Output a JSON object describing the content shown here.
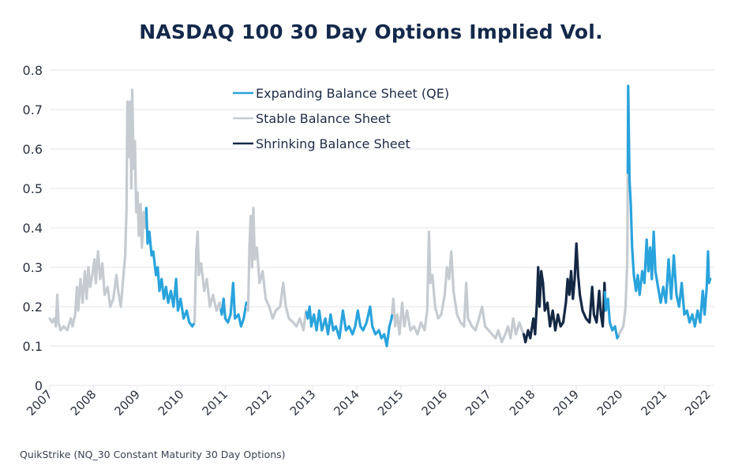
{
  "title": "NASDAQ 100 30 Day Options Implied Vol.",
  "source": "QuikStrike (NQ_30 Constant Maturity 30 Day Options)",
  "colors": {
    "expanding": "#29a3dc",
    "stable": "#c5cbd0",
    "shrinking": "#142844",
    "grid": "#e4e6e9",
    "text": "#1d2b45"
  },
  "chart_data": {
    "type": "line",
    "title": "NASDAQ 100 30 Day Options Implied Vol.",
    "xlabel": "",
    "ylabel": "",
    "xlim": [
      2007,
      2022
    ],
    "ylim": [
      0,
      0.8
    ],
    "grid": true,
    "legend_position": "top-center",
    "x_ticks": [
      "2007",
      "2008",
      "2009",
      "2010",
      "2011",
      "2012",
      "2013",
      "2014",
      "2015",
      "2016",
      "2017",
      "2018",
      "2019",
      "2020",
      "2021",
      "2022"
    ],
    "y_ticks": [
      "0",
      "0.1",
      "0.2",
      "0.3",
      "0.4",
      "0.5",
      "0.6",
      "0.7",
      "0.8"
    ],
    "legend": [
      {
        "key": "expanding",
        "label": "Expanding Balance Sheet (QE)"
      },
      {
        "key": "stable",
        "label": "Stable Balance Sheet"
      },
      {
        "key": "shrinking",
        "label": "Shrinking Balance Sheet"
      }
    ],
    "regimes": [
      {
        "key": "stable",
        "from": 2007.0,
        "to": 2009.2
      },
      {
        "key": "expanding",
        "from": 2009.2,
        "to": 2010.3
      },
      {
        "key": "stable",
        "from": 2010.3,
        "to": 2010.9
      },
      {
        "key": "expanding",
        "from": 2010.9,
        "to": 2011.5
      },
      {
        "key": "stable",
        "from": 2011.5,
        "to": 2012.85
      },
      {
        "key": "expanding",
        "from": 2012.85,
        "to": 2014.8
      },
      {
        "key": "stable",
        "from": 2014.8,
        "to": 2017.8
      },
      {
        "key": "shrinking",
        "from": 2017.8,
        "to": 2019.65
      },
      {
        "key": "expanding",
        "from": 2019.65,
        "to": 2019.97
      },
      {
        "key": "stable",
        "from": 2019.97,
        "to": 2020.17
      },
      {
        "key": "expanding",
        "from": 2020.17,
        "to": 2022.05
      }
    ],
    "series": [
      {
        "name": "NQ 30 Day Implied Vol",
        "points": [
          [
            2007.0,
            0.17
          ],
          [
            2007.05,
            0.16
          ],
          [
            2007.1,
            0.17
          ],
          [
            2007.14,
            0.15
          ],
          [
            2007.17,
            0.23
          ],
          [
            2007.2,
            0.16
          ],
          [
            2007.25,
            0.14
          ],
          [
            2007.32,
            0.15
          ],
          [
            2007.4,
            0.14
          ],
          [
            2007.48,
            0.17
          ],
          [
            2007.52,
            0.15
          ],
          [
            2007.58,
            0.18
          ],
          [
            2007.62,
            0.25
          ],
          [
            2007.65,
            0.19
          ],
          [
            2007.7,
            0.27
          ],
          [
            2007.75,
            0.21
          ],
          [
            2007.8,
            0.29
          ],
          [
            2007.84,
            0.22
          ],
          [
            2007.88,
            0.3
          ],
          [
            2007.92,
            0.25
          ],
          [
            2007.97,
            0.28
          ],
          [
            2008.02,
            0.32
          ],
          [
            2008.05,
            0.26
          ],
          [
            2008.1,
            0.34
          ],
          [
            2008.15,
            0.27
          ],
          [
            2008.2,
            0.31
          ],
          [
            2008.25,
            0.23
          ],
          [
            2008.32,
            0.25
          ],
          [
            2008.38,
            0.2
          ],
          [
            2008.45,
            0.22
          ],
          [
            2008.52,
            0.28
          ],
          [
            2008.56,
            0.24
          ],
          [
            2008.62,
            0.2
          ],
          [
            2008.68,
            0.28
          ],
          [
            2008.72,
            0.33
          ],
          [
            2008.75,
            0.45
          ],
          [
            2008.77,
            0.72
          ],
          [
            2008.8,
            0.58
          ],
          [
            2008.83,
            0.72
          ],
          [
            2008.86,
            0.5
          ],
          [
            2008.88,
            0.75
          ],
          [
            2008.91,
            0.55
          ],
          [
            2008.94,
            0.62
          ],
          [
            2008.97,
            0.44
          ],
          [
            2009.0,
            0.49
          ],
          [
            2009.03,
            0.38
          ],
          [
            2009.07,
            0.46
          ],
          [
            2009.1,
            0.35
          ],
          [
            2009.14,
            0.44
          ],
          [
            2009.18,
            0.4
          ],
          [
            2009.2,
            0.45
          ],
          [
            2009.23,
            0.36
          ],
          [
            2009.27,
            0.39
          ],
          [
            2009.32,
            0.33
          ],
          [
            2009.36,
            0.34
          ],
          [
            2009.42,
            0.28
          ],
          [
            2009.46,
            0.3
          ],
          [
            2009.5,
            0.24
          ],
          [
            2009.55,
            0.27
          ],
          [
            2009.6,
            0.22
          ],
          [
            2009.65,
            0.25
          ],
          [
            2009.7,
            0.21
          ],
          [
            2009.76,
            0.24
          ],
          [
            2009.82,
            0.2
          ],
          [
            2009.88,
            0.27
          ],
          [
            2009.92,
            0.19
          ],
          [
            2009.98,
            0.22
          ],
          [
            2010.05,
            0.17
          ],
          [
            2010.12,
            0.19
          ],
          [
            2010.18,
            0.16
          ],
          [
            2010.25,
            0.15
          ],
          [
            2010.3,
            0.16
          ],
          [
            2010.34,
            0.34
          ],
          [
            2010.37,
            0.39
          ],
          [
            2010.4,
            0.28
          ],
          [
            2010.45,
            0.31
          ],
          [
            2010.52,
            0.24
          ],
          [
            2010.58,
            0.27
          ],
          [
            2010.65,
            0.2
          ],
          [
            2010.72,
            0.23
          ],
          [
            2010.8,
            0.19
          ],
          [
            2010.87,
            0.21
          ],
          [
            2010.92,
            0.18
          ],
          [
            2010.96,
            0.22
          ],
          [
            2011.0,
            0.17
          ],
          [
            2011.06,
            0.16
          ],
          [
            2011.12,
            0.18
          ],
          [
            2011.18,
            0.26
          ],
          [
            2011.22,
            0.17
          ],
          [
            2011.3,
            0.18
          ],
          [
            2011.36,
            0.15
          ],
          [
            2011.42,
            0.17
          ],
          [
            2011.48,
            0.21
          ],
          [
            2011.52,
            0.19
          ],
          [
            2011.55,
            0.35
          ],
          [
            2011.58,
            0.43
          ],
          [
            2011.61,
            0.3
          ],
          [
            2011.64,
            0.45
          ],
          [
            2011.67,
            0.32
          ],
          [
            2011.72,
            0.35
          ],
          [
            2011.78,
            0.26
          ],
          [
            2011.85,
            0.29
          ],
          [
            2011.92,
            0.22
          ],
          [
            2012.0,
            0.2
          ],
          [
            2012.08,
            0.17
          ],
          [
            2012.15,
            0.19
          ],
          [
            2012.25,
            0.2
          ],
          [
            2012.32,
            0.26
          ],
          [
            2012.38,
            0.2
          ],
          [
            2012.45,
            0.17
          ],
          [
            2012.55,
            0.16
          ],
          [
            2012.62,
            0.15
          ],
          [
            2012.7,
            0.17
          ],
          [
            2012.78,
            0.14
          ],
          [
            2012.84,
            0.19
          ],
          [
            2012.88,
            0.17
          ],
          [
            2012.92,
            0.2
          ],
          [
            2012.96,
            0.15
          ],
          [
            2013.02,
            0.18
          ],
          [
            2013.08,
            0.14
          ],
          [
            2013.14,
            0.19
          ],
          [
            2013.2,
            0.14
          ],
          [
            2013.28,
            0.17
          ],
          [
            2013.34,
            0.13
          ],
          [
            2013.4,
            0.18
          ],
          [
            2013.46,
            0.14
          ],
          [
            2013.52,
            0.15
          ],
          [
            2013.6,
            0.12
          ],
          [
            2013.68,
            0.19
          ],
          [
            2013.75,
            0.14
          ],
          [
            2013.82,
            0.15
          ],
          [
            2013.9,
            0.13
          ],
          [
            2013.96,
            0.15
          ],
          [
            2014.02,
            0.19
          ],
          [
            2014.08,
            0.15
          ],
          [
            2014.14,
            0.14
          ],
          [
            2014.22,
            0.16
          ],
          [
            2014.3,
            0.2
          ],
          [
            2014.35,
            0.15
          ],
          [
            2014.42,
            0.13
          ],
          [
            2014.5,
            0.14
          ],
          [
            2014.56,
            0.12
          ],
          [
            2014.62,
            0.13
          ],
          [
            2014.68,
            0.1
          ],
          [
            2014.74,
            0.15
          ],
          [
            2014.79,
            0.17
          ],
          [
            2014.83,
            0.22
          ],
          [
            2014.87,
            0.15
          ],
          [
            2014.92,
            0.18
          ],
          [
            2014.97,
            0.13
          ],
          [
            2015.03,
            0.21
          ],
          [
            2015.08,
            0.15
          ],
          [
            2015.14,
            0.19
          ],
          [
            2015.22,
            0.14
          ],
          [
            2015.3,
            0.15
          ],
          [
            2015.38,
            0.13
          ],
          [
            2015.46,
            0.16
          ],
          [
            2015.54,
            0.14
          ],
          [
            2015.6,
            0.19
          ],
          [
            2015.64,
            0.39
          ],
          [
            2015.67,
            0.26
          ],
          [
            2015.72,
            0.28
          ],
          [
            2015.78,
            0.2
          ],
          [
            2015.85,
            0.17
          ],
          [
            2015.92,
            0.18
          ],
          [
            2016.0,
            0.23
          ],
          [
            2016.05,
            0.3
          ],
          [
            2016.1,
            0.27
          ],
          [
            2016.15,
            0.34
          ],
          [
            2016.2,
            0.24
          ],
          [
            2016.28,
            0.18
          ],
          [
            2016.36,
            0.16
          ],
          [
            2016.44,
            0.15
          ],
          [
            2016.49,
            0.26
          ],
          [
            2016.53,
            0.17
          ],
          [
            2016.62,
            0.15
          ],
          [
            2016.7,
            0.14
          ],
          [
            2016.78,
            0.17
          ],
          [
            2016.85,
            0.2
          ],
          [
            2016.92,
            0.15
          ],
          [
            2017.0,
            0.14
          ],
          [
            2017.08,
            0.13
          ],
          [
            2017.16,
            0.12
          ],
          [
            2017.22,
            0.14
          ],
          [
            2017.3,
            0.11
          ],
          [
            2017.38,
            0.13
          ],
          [
            2017.44,
            0.15
          ],
          [
            2017.5,
            0.12
          ],
          [
            2017.56,
            0.17
          ],
          [
            2017.62,
            0.13
          ],
          [
            2017.7,
            0.16
          ],
          [
            2017.76,
            0.14
          ],
          [
            2017.8,
            0.13
          ],
          [
            2017.84,
            0.11
          ],
          [
            2017.9,
            0.14
          ],
          [
            2017.95,
            0.12
          ],
          [
            2018.02,
            0.17
          ],
          [
            2018.06,
            0.13
          ],
          [
            2018.1,
            0.21
          ],
          [
            2018.13,
            0.3
          ],
          [
            2018.16,
            0.2
          ],
          [
            2018.2,
            0.29
          ],
          [
            2018.24,
            0.26
          ],
          [
            2018.28,
            0.19
          ],
          [
            2018.34,
            0.21
          ],
          [
            2018.4,
            0.15
          ],
          [
            2018.46,
            0.19
          ],
          [
            2018.52,
            0.14
          ],
          [
            2018.58,
            0.18
          ],
          [
            2018.64,
            0.15
          ],
          [
            2018.7,
            0.16
          ],
          [
            2018.76,
            0.21
          ],
          [
            2018.8,
            0.27
          ],
          [
            2018.84,
            0.23
          ],
          [
            2018.88,
            0.29
          ],
          [
            2018.92,
            0.22
          ],
          [
            2018.96,
            0.27
          ],
          [
            2019.0,
            0.36
          ],
          [
            2019.04,
            0.28
          ],
          [
            2019.08,
            0.23
          ],
          [
            2019.14,
            0.19
          ],
          [
            2019.22,
            0.17
          ],
          [
            2019.3,
            0.16
          ],
          [
            2019.36,
            0.25
          ],
          [
            2019.4,
            0.18
          ],
          [
            2019.46,
            0.16
          ],
          [
            2019.52,
            0.24
          ],
          [
            2019.56,
            0.18
          ],
          [
            2019.6,
            0.15
          ],
          [
            2019.64,
            0.26
          ],
          [
            2019.67,
            0.19
          ],
          [
            2019.72,
            0.22
          ],
          [
            2019.76,
            0.16
          ],
          [
            2019.82,
            0.14
          ],
          [
            2019.88,
            0.15
          ],
          [
            2019.93,
            0.12
          ],
          [
            2019.97,
            0.13
          ],
          [
            2020.02,
            0.14
          ],
          [
            2020.07,
            0.15
          ],
          [
            2020.12,
            0.2
          ],
          [
            2020.16,
            0.32
          ],
          [
            2020.18,
            0.76
          ],
          [
            2020.21,
            0.52
          ],
          [
            2020.24,
            0.46
          ],
          [
            2020.27,
            0.35
          ],
          [
            2020.31,
            0.28
          ],
          [
            2020.36,
            0.24
          ],
          [
            2020.4,
            0.28
          ],
          [
            2020.44,
            0.23
          ],
          [
            2020.5,
            0.29
          ],
          [
            2020.55,
            0.26
          ],
          [
            2020.6,
            0.37
          ],
          [
            2020.64,
            0.29
          ],
          [
            2020.68,
            0.35
          ],
          [
            2020.72,
            0.27
          ],
          [
            2020.76,
            0.39
          ],
          [
            2020.8,
            0.29
          ],
          [
            2020.86,
            0.25
          ],
          [
            2020.92,
            0.21
          ],
          [
            2020.98,
            0.25
          ],
          [
            2021.04,
            0.21
          ],
          [
            2021.1,
            0.32
          ],
          [
            2021.16,
            0.22
          ],
          [
            2021.22,
            0.33
          ],
          [
            2021.28,
            0.23
          ],
          [
            2021.34,
            0.2
          ],
          [
            2021.4,
            0.26
          ],
          [
            2021.46,
            0.18
          ],
          [
            2021.52,
            0.19
          ],
          [
            2021.58,
            0.16
          ],
          [
            2021.64,
            0.18
          ],
          [
            2021.7,
            0.15
          ],
          [
            2021.76,
            0.19
          ],
          [
            2021.82,
            0.16
          ],
          [
            2021.88,
            0.24
          ],
          [
            2021.92,
            0.18
          ],
          [
            2021.97,
            0.25
          ],
          [
            2022.0,
            0.34
          ],
          [
            2022.02,
            0.26
          ],
          [
            2022.05,
            0.27
          ]
        ]
      }
    ]
  }
}
